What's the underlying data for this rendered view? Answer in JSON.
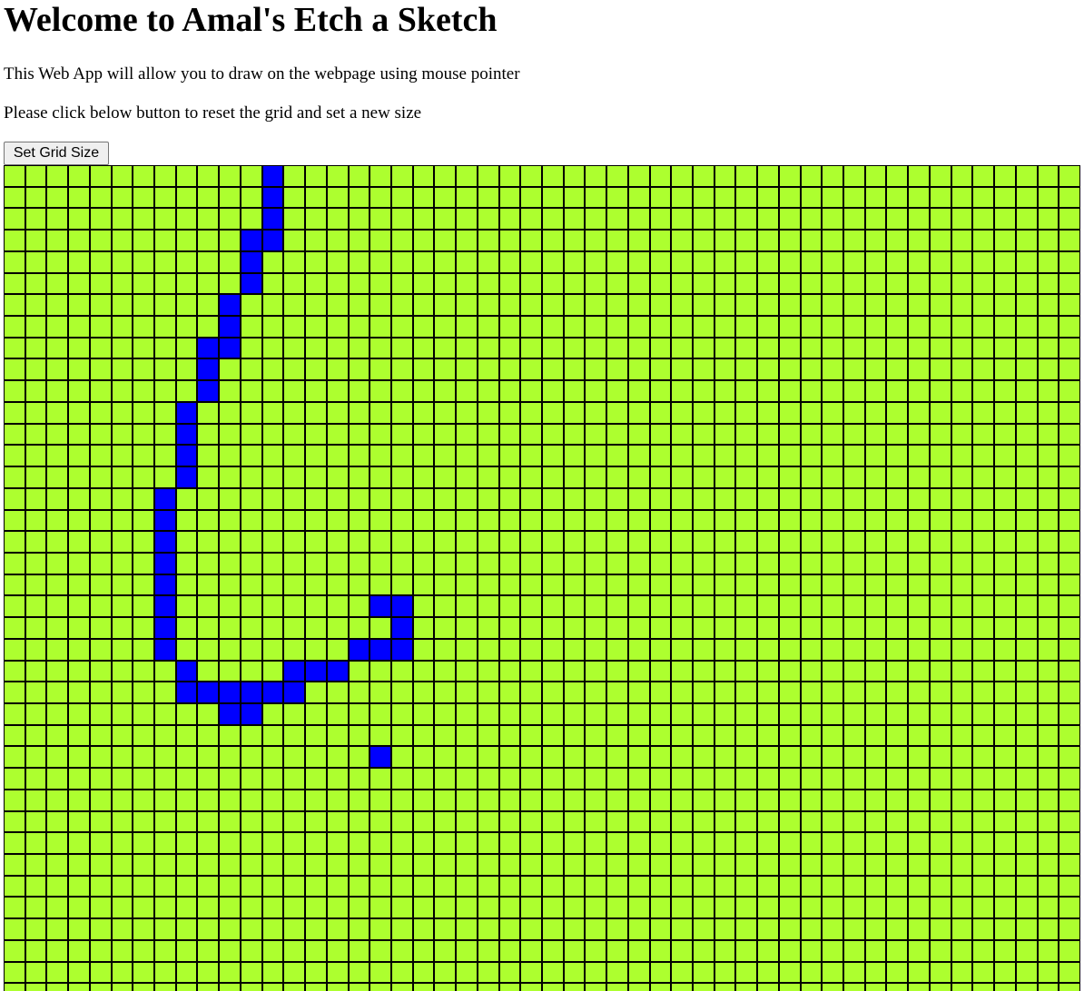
{
  "page": {
    "title": "Welcome to Amal's Etch a Sketch",
    "intro_lines": [
      "This Web App will allow you to draw on the webpage using mouse pointer",
      "Please click below button to reset the grid and set a new size"
    ],
    "button_label": "Set Grid Size"
  },
  "grid": {
    "columns": 50,
    "visible_rows": 39,
    "cell_color": "#adff2f",
    "border_color": "#000000",
    "paint_color": "#0000ff",
    "painted_cells": [
      [
        0,
        12
      ],
      [
        1,
        12
      ],
      [
        2,
        12
      ],
      [
        3,
        11
      ],
      [
        3,
        12
      ],
      [
        4,
        11
      ],
      [
        5,
        11
      ],
      [
        6,
        10
      ],
      [
        7,
        10
      ],
      [
        8,
        9
      ],
      [
        8,
        10
      ],
      [
        9,
        9
      ],
      [
        10,
        9
      ],
      [
        11,
        8
      ],
      [
        12,
        8
      ],
      [
        13,
        8
      ],
      [
        14,
        8
      ],
      [
        15,
        7
      ],
      [
        16,
        7
      ],
      [
        17,
        7
      ],
      [
        18,
        7
      ],
      [
        19,
        7
      ],
      [
        20,
        7
      ],
      [
        20,
        17
      ],
      [
        20,
        18
      ],
      [
        21,
        7
      ],
      [
        21,
        18
      ],
      [
        22,
        7
      ],
      [
        22,
        16
      ],
      [
        22,
        17
      ],
      [
        22,
        18
      ],
      [
        23,
        8
      ],
      [
        23,
        13
      ],
      [
        23,
        14
      ],
      [
        23,
        15
      ],
      [
        24,
        8
      ],
      [
        24,
        9
      ],
      [
        24,
        10
      ],
      [
        24,
        11
      ],
      [
        24,
        12
      ],
      [
        24,
        13
      ],
      [
        25,
        10
      ],
      [
        25,
        11
      ],
      [
        27,
        17
      ]
    ]
  }
}
